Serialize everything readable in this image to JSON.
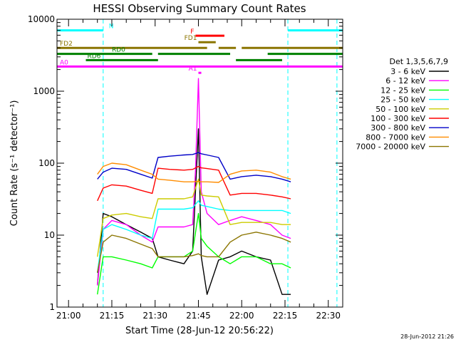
{
  "chart_data": {
    "type": "line",
    "title": "HESSI Observing Summary Count Rates",
    "xlabel": "Start Time (28-Jun-12 20:56:22)",
    "ylabel": "Count Rate (s⁻¹ detector⁻¹)",
    "y_scale": "log",
    "ylim": [
      1,
      10000
    ],
    "y_ticks": [
      1,
      10,
      100,
      1000,
      10000
    ],
    "y_tick_labels": [
      "1",
      "10",
      "100",
      "1000",
      "10000"
    ],
    "xlim": [
      "20:56",
      "22:35"
    ],
    "x_ticks": [
      "21:00",
      "21:15",
      "21:30",
      "21:45",
      "22:00",
      "22:15",
      "22:30"
    ],
    "legend_title": "Det 1,3,5,6,7,9",
    "legend_position": "right",
    "timestamp": "28-Jun-2012 21:26",
    "series": [
      {
        "name": "3 - 6 keV",
        "color": "#000000",
        "x": [
          "21:10",
          "21:12",
          "21:15",
          "21:20",
          "21:25",
          "21:29",
          "21:31",
          "21:35",
          "21:40",
          "21:43",
          "21:45",
          "21:46",
          "21:48",
          "21:52",
          "21:56",
          "22:00",
          "22:05",
          "22:10",
          "22:14",
          "22:17"
        ],
        "y": [
          2,
          20,
          18,
          14,
          11,
          9,
          5,
          4.5,
          4,
          6,
          300,
          5,
          1.5,
          4.5,
          5,
          6,
          5,
          4.5,
          1.5,
          1.5
        ]
      },
      {
        "name": "6 - 12 keV",
        "color": "#ff00ff",
        "x": [
          "21:10",
          "21:12",
          "21:15",
          "21:20",
          "21:25",
          "21:29",
          "21:31",
          "21:35",
          "21:40",
          "21:43",
          "21:44",
          "21:45",
          "21:46",
          "21:48",
          "21:52",
          "21:56",
          "22:00",
          "22:05",
          "22:10",
          "22:14",
          "22:17"
        ],
        "y": [
          2,
          12,
          16,
          14,
          10,
          8,
          13,
          13,
          13,
          14,
          80,
          1500,
          40,
          20,
          14,
          16,
          18,
          16,
          14,
          10,
          9
        ]
      },
      {
        "name": "12 - 25 keV",
        "color": "#00ff00",
        "x": [
          "21:10",
          "21:12",
          "21:15",
          "21:20",
          "21:25",
          "21:29",
          "21:31",
          "21:35",
          "21:40",
          "21:43",
          "21:45",
          "21:46",
          "21:48",
          "21:52",
          "21:56",
          "22:00",
          "22:05",
          "22:10",
          "22:14",
          "22:17"
        ],
        "y": [
          1.5,
          5,
          5,
          4.5,
          4,
          3.5,
          5,
          5,
          5,
          6,
          20,
          9,
          7,
          5,
          4,
          5,
          5,
          4,
          4,
          3.5
        ]
      },
      {
        "name": "25 - 50 keV",
        "color": "#00ffff",
        "x": [
          "21:10",
          "21:12",
          "21:15",
          "21:20",
          "21:25",
          "21:29",
          "21:31",
          "21:35",
          "21:40",
          "21:43",
          "21:45",
          "21:46",
          "21:48",
          "21:52",
          "21:56",
          "22:00",
          "22:05",
          "22:10",
          "22:14",
          "22:17"
        ],
        "y": [
          3,
          12,
          14,
          12,
          10,
          9,
          23,
          23,
          23,
          24,
          30,
          26,
          25,
          23,
          22,
          22,
          22,
          22,
          22,
          20
        ]
      },
      {
        "name": "50 - 100 keV",
        "color": "#cccc00",
        "x": [
          "21:10",
          "21:12",
          "21:15",
          "21:20",
          "21:25",
          "21:29",
          "21:31",
          "21:35",
          "21:40",
          "21:43",
          "21:45",
          "21:46",
          "21:48",
          "21:52",
          "21:56",
          "22:00",
          "22:05",
          "22:10",
          "22:14",
          "22:17"
        ],
        "y": [
          5,
          17,
          19,
          20,
          18,
          17,
          32,
          32,
          32,
          34,
          60,
          36,
          35,
          34,
          14,
          15,
          15,
          15,
          14,
          14
        ]
      },
      {
        "name": "100 - 300 keV",
        "color": "#ff0000",
        "x": [
          "21:10",
          "21:12",
          "21:15",
          "21:20",
          "21:25",
          "21:29",
          "21:31",
          "21:35",
          "21:40",
          "21:43",
          "21:45",
          "21:46",
          "21:48",
          "21:52",
          "21:56",
          "22:00",
          "22:05",
          "22:10",
          "22:14",
          "22:17"
        ],
        "y": [
          30,
          45,
          50,
          48,
          42,
          38,
          85,
          82,
          80,
          82,
          90,
          86,
          84,
          80,
          36,
          38,
          38,
          36,
          34,
          32
        ]
      },
      {
        "name": "300 - 800 keV",
        "color": "#0000c8",
        "x": [
          "21:10",
          "21:12",
          "21:15",
          "21:20",
          "21:25",
          "21:29",
          "21:31",
          "21:35",
          "21:40",
          "21:43",
          "21:45",
          "21:46",
          "21:48",
          "21:52",
          "21:56",
          "22:00",
          "22:05",
          "22:10",
          "22:14",
          "22:17"
        ],
        "y": [
          60,
          75,
          85,
          82,
          70,
          62,
          120,
          125,
          130,
          132,
          140,
          135,
          130,
          120,
          60,
          65,
          68,
          65,
          60,
          55
        ]
      },
      {
        "name": "800 - 7000 keV",
        "color": "#ff8c00",
        "x": [
          "21:10",
          "21:12",
          "21:15",
          "21:20",
          "21:25",
          "21:29",
          "21:31",
          "21:35",
          "21:40",
          "21:43",
          "21:45",
          "21:46",
          "21:48",
          "21:52",
          "21:56",
          "22:00",
          "22:05",
          "22:10",
          "22:14",
          "22:17"
        ],
        "y": [
          70,
          90,
          100,
          95,
          80,
          70,
          60,
          58,
          55,
          55,
          56,
          55,
          55,
          54,
          70,
          78,
          80,
          75,
          65,
          60
        ]
      },
      {
        "name": "7000 - 20000 keV",
        "color": "#8b7500",
        "x": [
          "21:10",
          "21:12",
          "21:15",
          "21:20",
          "21:25",
          "21:29",
          "21:31",
          "21:35",
          "21:40",
          "21:43",
          "21:45",
          "21:46",
          "21:48",
          "21:52",
          "21:56",
          "22:00",
          "22:05",
          "22:10",
          "22:14",
          "22:17"
        ],
        "y": [
          3,
          8,
          10,
          9,
          7.5,
          6.5,
          5,
          5,
          5,
          5.2,
          5.5,
          5.2,
          5,
          5,
          8,
          10,
          11,
          10,
          9,
          8
        ]
      }
    ],
    "flag_bars": [
      {
        "label": "N",
        "color": "#00ffff",
        "y": 7000,
        "segments": [
          [
            "20:56",
            "21:12"
          ],
          [
            "22:16",
            "22:35"
          ]
        ]
      },
      {
        "label": "F",
        "color": "#ff0000",
        "y": 5900,
        "segments": [
          [
            "21:44",
            "21:54"
          ]
        ]
      },
      {
        "label": "FD1",
        "color": "#8b7500",
        "y": 4800,
        "segments": [
          [
            "21:45",
            "21:51"
          ]
        ]
      },
      {
        "label": "FD2",
        "color": "#8b7500",
        "y": 4000,
        "segments": [
          [
            "20:56",
            "21:48"
          ],
          [
            "21:52",
            "21:58"
          ],
          [
            "22:00",
            "22:35"
          ]
        ]
      },
      {
        "label": "RD0",
        "color": "#008000",
        "y": 3300,
        "segments": [
          [
            "20:56",
            "21:29"
          ],
          [
            "21:31",
            "21:56"
          ],
          [
            "22:09",
            "22:35"
          ]
        ]
      },
      {
        "label": "RD6",
        "color": "#008000",
        "y": 2700,
        "segments": [
          [
            "21:06",
            "21:31"
          ],
          [
            "21:58",
            "22:14"
          ]
        ]
      },
      {
        "label": "A0",
        "color": "#ff00ff",
        "y": 2200,
        "segments": [
          [
            "20:56",
            "22:35"
          ]
        ]
      },
      {
        "label": "A1",
        "color": "#ff00ff",
        "y": 1800,
        "segments": [
          [
            "21:45",
            "21:46"
          ]
        ]
      }
    ],
    "dashed_markers": [
      {
        "color": "#00ffff",
        "x": [
          "21:12",
          "22:16",
          "22:33"
        ]
      }
    ]
  }
}
